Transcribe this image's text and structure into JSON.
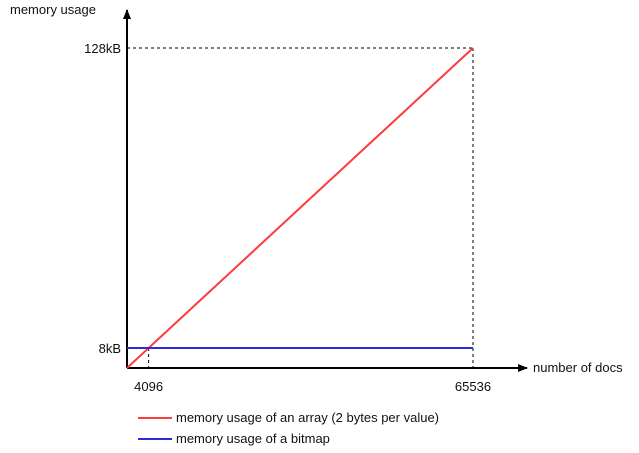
{
  "chart_data": {
    "type": "line",
    "xlabel": "number of docs",
    "ylabel": "memory usage",
    "x_ticks": [
      {
        "value": 4096,
        "label": "4096"
      },
      {
        "value": 65536,
        "label": "65536"
      }
    ],
    "y_ticks": [
      {
        "value": 8,
        "label": "8kB"
      },
      {
        "value": 128,
        "label": "128kB"
      }
    ],
    "xlim": [
      0,
      65536
    ],
    "ylim": [
      0,
      128
    ],
    "grid": false,
    "legend_position": "bottom",
    "series": [
      {
        "name": "memory usage of an array (2 bytes per value)",
        "color": "#ff3b3b",
        "points": [
          [
            0,
            0
          ],
          [
            65536,
            128
          ]
        ]
      },
      {
        "name": "memory usage of a bitmap",
        "color": "#2b2bd9",
        "points": [
          [
            0,
            8
          ],
          [
            65536,
            8
          ]
        ]
      }
    ]
  }
}
